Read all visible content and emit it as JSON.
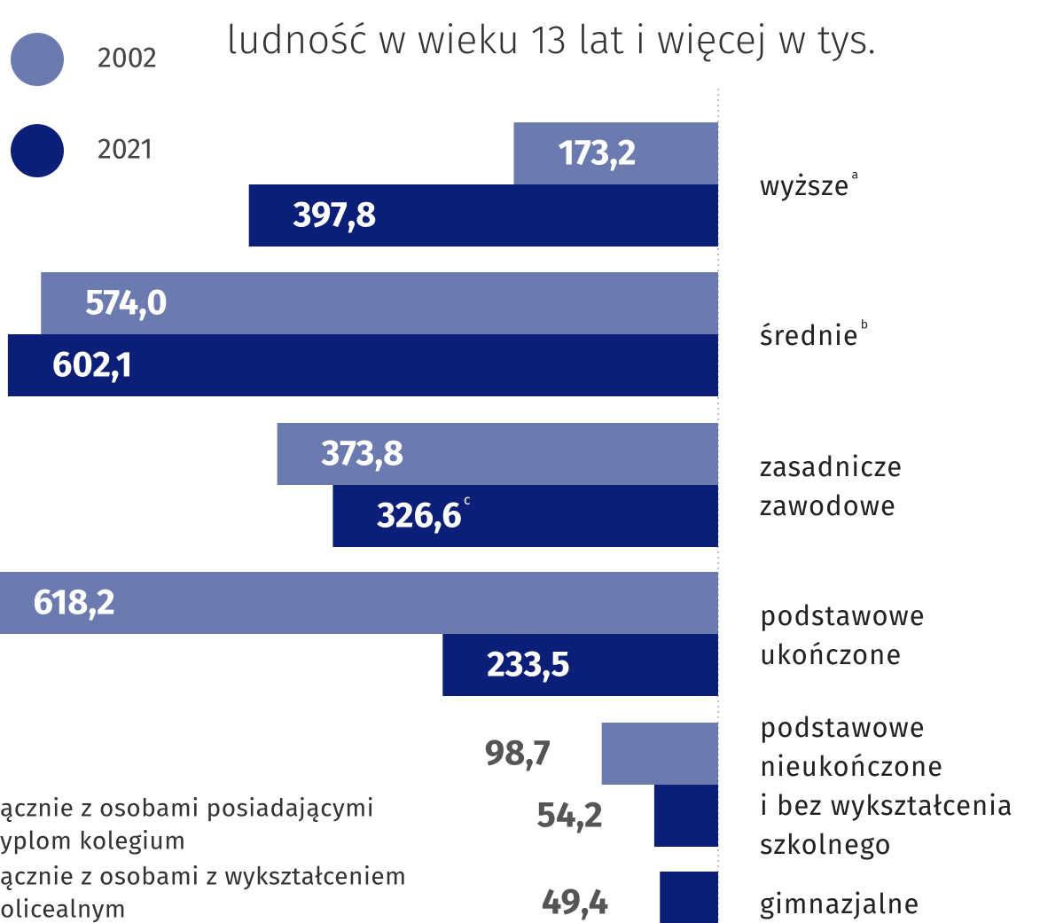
{
  "chart_data": {
    "type": "bar",
    "orientation": "horizontal",
    "title": "ludność w wieku 13 lat i więcej w tys.",
    "categories": [
      [
        "wyższe"
      ],
      [
        "średnie"
      ],
      [
        "zasadnicze",
        "zawodowe"
      ],
      [
        "podstawowe",
        "ukończone"
      ],
      [
        "podstawowe",
        "nieukończone",
        "i bez wykształcenia",
        "szkolnego"
      ],
      [
        "gimnazjalne"
      ]
    ],
    "category_notes": [
      "a",
      "b",
      null,
      null,
      null,
      null
    ],
    "series": [
      {
        "name": "2002",
        "color": "#6b7bb0",
        "values": [
          173.2,
          574.0,
          373.8,
          618.2,
          98.7,
          null
        ],
        "value_labels": [
          "173,2",
          "574,0",
          "373,8",
          "618,2",
          "98,7",
          null
        ]
      },
      {
        "name": "2021",
        "color": "#0b1f78",
        "values": [
          397.8,
          602.1,
          326.6,
          233.5,
          54.2,
          49.4
        ],
        "value_labels": [
          "397,8",
          "602,1",
          "326,6",
          "233,5",
          "54,2",
          "49,4"
        ],
        "value_notes": [
          null,
          null,
          "c",
          null,
          null,
          null
        ]
      }
    ],
    "xlim": [
      0,
      605
    ],
    "footnotes": [
      "ącznie z osobami posiadającymi",
      "yplom kolegium",
      "ącznie z osobami z wykształceniem",
      "olicealnym"
    ]
  }
}
